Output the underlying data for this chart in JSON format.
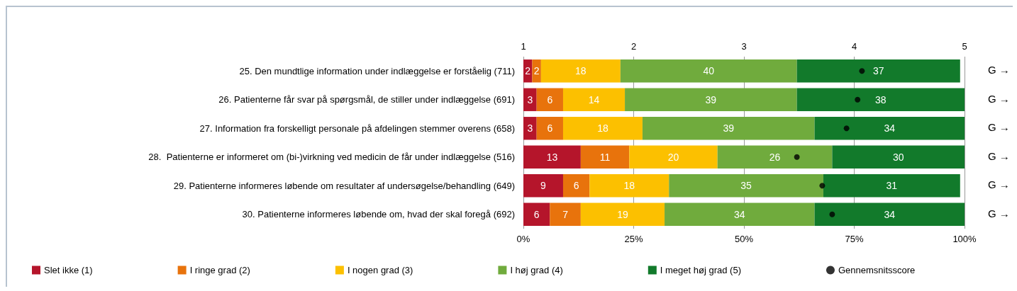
{
  "chart_data": {
    "type": "bar",
    "orientation": "horizontal",
    "stacked": true,
    "grid": "x",
    "legend": "bottom",
    "categories": [
      "25. Den mundtlige information under indlæggelse er forståelig (711)",
      "26. Patienterne får svar på spørgsmål, de stiller under indlæggelse (691)",
      "27. Information fra forskelligt personale på afdelingen stemmer overens (658)",
      "28.  Patienterne er informeret om (bi-)virkning ved medicin de får under indlæggelse (516)",
      "29. Patienterne informeres løbende om resultater af undersøgelse/behandling (649)",
      "30. Patienterne informeres løbende om, hvad der skal foregå (692)"
    ],
    "xlim": [
      0,
      100
    ],
    "xticks": [
      {
        "value": 0,
        "label": "0%"
      },
      {
        "value": 25,
        "label": "25%"
      },
      {
        "value": 50,
        "label": "50%"
      },
      {
        "value": 75,
        "label": "75%"
      },
      {
        "value": 100,
        "label": "100%"
      }
    ],
    "x2lim": [
      1,
      5
    ],
    "x2ticks": [
      1,
      2,
      3,
      4,
      5
    ],
    "series": [
      {
        "name": "Slet ikke (1)",
        "color": "#b5152b",
        "values": [
          2,
          3,
          3,
          13,
          9,
          6
        ],
        "value_labels": [
          "2",
          "3",
          "3",
          "13",
          "9",
          "6"
        ]
      },
      {
        "name": "I ringe grad (2)",
        "color": "#e8730c",
        "values": [
          2,
          6,
          6,
          11,
          6,
          7
        ],
        "value_labels": [
          "2",
          "6",
          "6",
          "11",
          "6",
          "7"
        ]
      },
      {
        "name": "I nogen grad (3)",
        "color": "#fcc000",
        "values": [
          18,
          14,
          18,
          20,
          18,
          19
        ],
        "value_labels": [
          "18",
          "14",
          "18",
          "20",
          "18",
          "19"
        ]
      },
      {
        "name": "I høj grad (4)",
        "color": "#70ab3d",
        "values": [
          40,
          39,
          39,
          26,
          35,
          34
        ],
        "value_labels": [
          "40",
          "39",
          "39",
          "26",
          "35",
          "34"
        ]
      },
      {
        "name": "I meget høj grad (5)",
        "color": "#127a2b",
        "values": [
          37,
          38,
          34,
          30,
          31,
          34
        ],
        "value_labels": [
          "37",
          "38",
          "34",
          "30",
          "31",
          "34"
        ]
      },
      {
        "name": "Gennemsnitsscore",
        "type": "scatter",
        "axis": "x2",
        "marker": "circle",
        "color": "#000000",
        "values": [
          4.07,
          4.03,
          3.93,
          3.48,
          3.71,
          3.8
        ]
      }
    ],
    "annotations": [
      "G →",
      "G →",
      "G →",
      "G →",
      "G →",
      "G →"
    ]
  }
}
